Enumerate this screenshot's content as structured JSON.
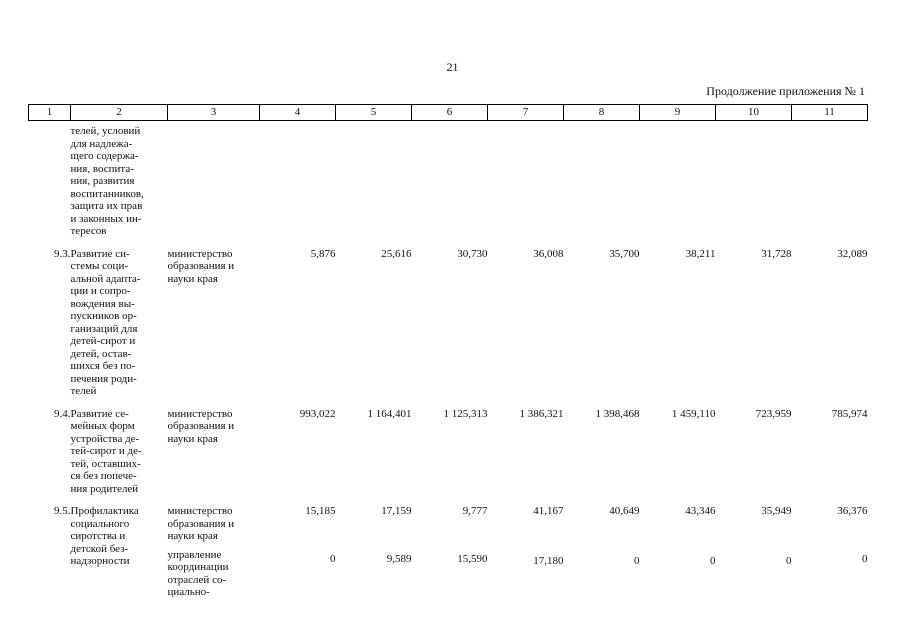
{
  "page_number": "21",
  "continuation_label": "Продолжение приложения № 1",
  "table": {
    "headers": [
      "1",
      "2",
      "3",
      "4",
      "5",
      "6",
      "7",
      "8",
      "9",
      "10",
      "11"
    ],
    "continuation_row": {
      "text": "телей, условий\nдля надлежа-\nщего содержа-\nния, воспита-\nния, развития\nвоспитанников,\nзащита их прав\nи законных ин-\nтересов"
    },
    "rows": [
      {
        "number": "9.3.",
        "name": "Развитие си-\nстемы соци-\nальной адапта-\nции и сопро-\nвождения вы-\nпускников ор-\nганизаций для\nдетей-сирот и\nдетей, остав-\nшихся без по-\nпечения роди-\nтелей",
        "executor": "министерство\nобразования и\nнауки края",
        "values": [
          "5,876",
          "25,616",
          "30,730",
          "36,008",
          "35,700",
          "38,211",
          "31,728",
          "32,089"
        ]
      },
      {
        "number": "9.4.",
        "name": "Развитие се-\nмейных форм\nустройства де-\nтей-сирот и де-\nтей, оставших-\nся без попече-\nния родителей",
        "executor": "министерство\nобразования и\nнауки края",
        "values": [
          "993,022",
          "1 164,401",
          "1 125,313",
          "1 386,321",
          "1 398,468",
          "1 459,110",
          "723,959",
          "785,974"
        ]
      },
      {
        "number": "9.5.",
        "name": "Профилактика\nсоциального\nсиротства и\nдетской без-\nнадзорности",
        "executor": "министерство\nобразования и\nнауки края",
        "values": [
          "15,185",
          "17,159",
          "9,777",
          "41,167",
          "40,649",
          "43,346",
          "35,949",
          "36,376"
        ],
        "sub": {
          "executor": "управление\nкоординации\nотраслей со-\nциально-",
          "values": [
            "0",
            "9,589",
            "15,590",
            "17,180",
            "0",
            "0",
            "0",
            "0"
          ]
        }
      }
    ]
  }
}
